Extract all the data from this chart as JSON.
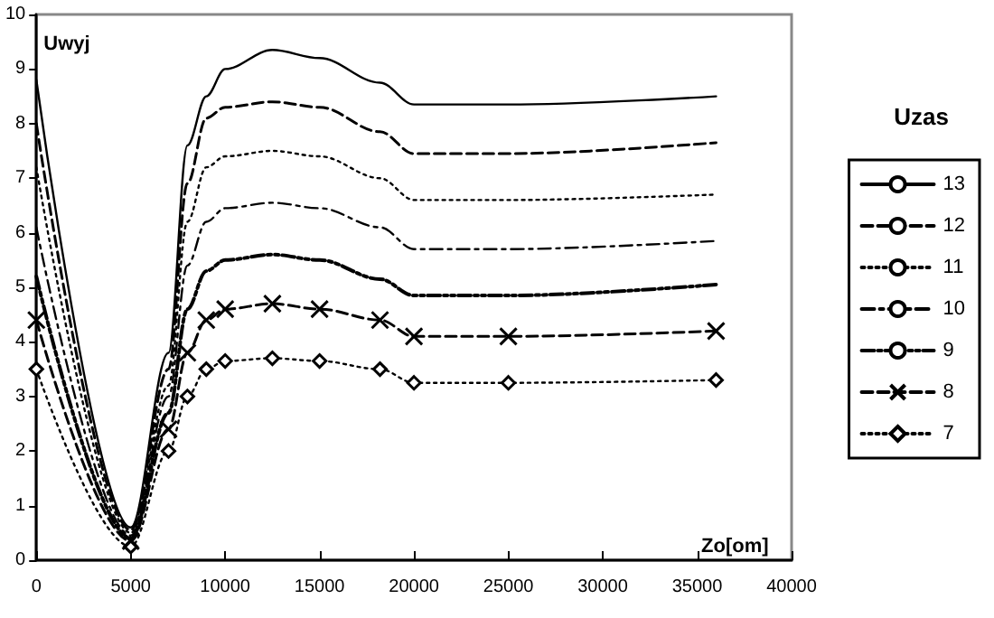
{
  "chart_data": {
    "type": "line",
    "ylabel": "Uwyj",
    "xlabel": "Zo[om]",
    "legend_title": "Uzas",
    "legend": "right",
    "grid": false,
    "x": [
      0,
      5000,
      7000,
      8000,
      9000,
      10000,
      12500,
      15000,
      18200,
      20000,
      25000,
      36000
    ],
    "xlim": [
      0,
      40000
    ],
    "xticks": [
      0,
      5000,
      10000,
      15000,
      20000,
      25000,
      30000,
      35000,
      40000
    ],
    "ylim": [
      0,
      10
    ],
    "yticks": [
      0,
      1,
      2,
      3,
      4,
      5,
      6,
      7,
      8,
      9,
      10
    ],
    "series": [
      {
        "name": "13",
        "color": "#000000",
        "line_style": "solid",
        "marker": "none",
        "values": [
          8.8,
          0.6,
          3.8,
          7.6,
          8.5,
          9.0,
          9.35,
          9.2,
          8.75,
          8.35,
          8.35,
          8.5
        ]
      },
      {
        "name": "12",
        "color": "#000000",
        "line_style": "dashed",
        "marker": "none",
        "values": [
          8.0,
          0.55,
          3.5,
          6.9,
          8.1,
          8.3,
          8.4,
          8.3,
          7.85,
          7.45,
          7.45,
          7.65
        ]
      },
      {
        "name": "11",
        "color": "#000000",
        "line_style": "dotted",
        "marker": "none",
        "values": [
          7.2,
          0.5,
          3.2,
          6.2,
          7.2,
          7.4,
          7.5,
          7.4,
          7.0,
          6.6,
          6.6,
          6.7
        ]
      },
      {
        "name": "10",
        "color": "#000000",
        "line_style": "dashdot",
        "marker": "none",
        "values": [
          6.1,
          0.45,
          3.0,
          5.4,
          6.2,
          6.45,
          6.55,
          6.45,
          6.1,
          5.7,
          5.7,
          5.85
        ]
      },
      {
        "name": "9",
        "color": "#000000",
        "line_style": "dashdotdot",
        "marker": "none",
        "values": [
          5.2,
          0.4,
          2.7,
          4.6,
          5.3,
          5.5,
          5.6,
          5.5,
          5.15,
          4.85,
          4.85,
          5.05
        ]
      },
      {
        "name": "8",
        "color": "#000000",
        "line_style": "dashed",
        "marker": "cross",
        "values": [
          4.4,
          0.35,
          2.4,
          3.8,
          4.4,
          4.6,
          4.7,
          4.6,
          4.4,
          4.1,
          4.1,
          4.2
        ]
      },
      {
        "name": "7",
        "color": "#000000",
        "line_style": "dotted",
        "marker": "diamond",
        "values": [
          3.5,
          0.25,
          2.0,
          3.0,
          3.5,
          3.65,
          3.7,
          3.65,
          3.5,
          3.25,
          3.25,
          3.3
        ]
      }
    ]
  }
}
